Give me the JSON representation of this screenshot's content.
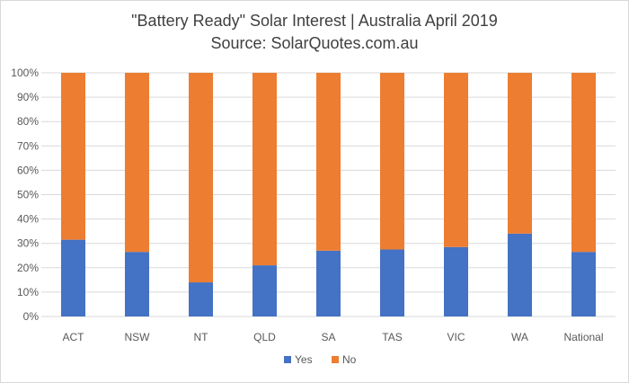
{
  "chart_data": {
    "type": "bar",
    "stacked": true,
    "title": "\"Battery Ready\" Solar Interest | Australia April 2019",
    "subtitle": "Source: SolarQuotes.com.au",
    "xlabel": "",
    "ylabel": "",
    "categories": [
      "ACT",
      "NSW",
      "NT",
      "QLD",
      "SA",
      "TAS",
      "VIC",
      "WA",
      "National"
    ],
    "series": [
      {
        "name": "Yes",
        "color": "#4472c4",
        "values": [
          31.5,
          26.5,
          14,
          21,
          27,
          27.5,
          28.5,
          34,
          26.5
        ]
      },
      {
        "name": "No",
        "color": "#ed7d31",
        "values": [
          68.5,
          73.5,
          86,
          79,
          73,
          72.5,
          71.5,
          66,
          73.5
        ]
      }
    ],
    "ylim": [
      0,
      100
    ],
    "yticks": [
      "0%",
      "10%",
      "20%",
      "30%",
      "40%",
      "50%",
      "60%",
      "70%",
      "80%",
      "90%",
      "100%"
    ],
    "grid": true,
    "legend_position": "bottom"
  }
}
